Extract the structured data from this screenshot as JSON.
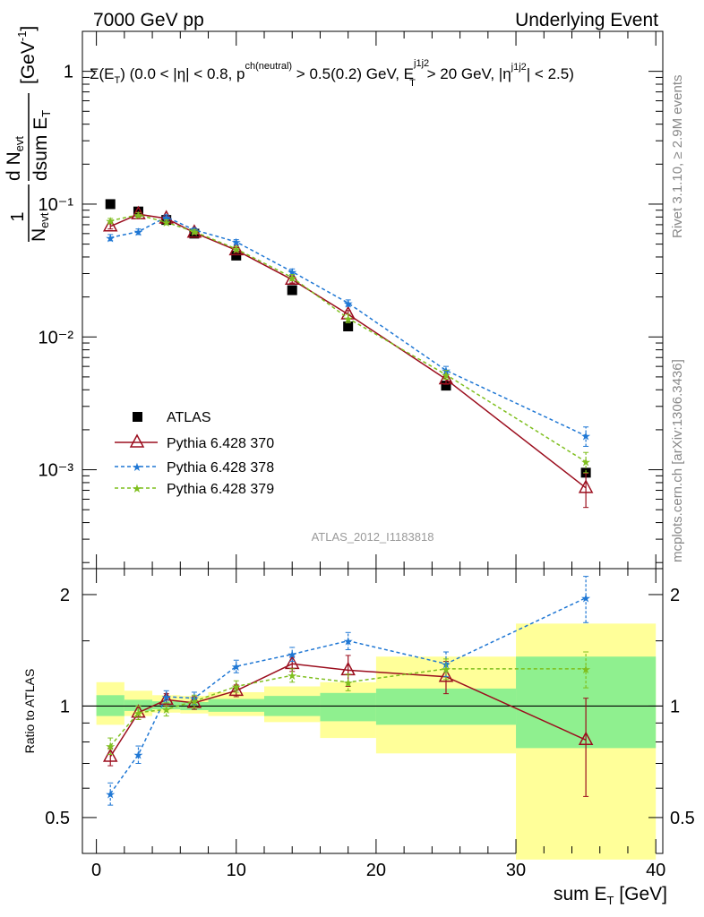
{
  "header": {
    "left": "7000 GeV pp",
    "right": "Underlying Event"
  },
  "side_labels": {
    "rivet": "Rivet 3.1.10, ≥ 2.9M events",
    "mcplots": "mcplots.cern.ch [arXiv:1306.3436]"
  },
  "analysis_id": "ATLAS_2012_I1183818",
  "cut_label": {
    "p1": "Σ(E",
    "p1sub": "T",
    "p2": ") (0.0 < |η| < 0.8, p",
    "p2sup": "ch(neutral)",
    "p3": " > 0.5(0.2) GeV, E",
    "p3sup": "j1j2",
    "p3sub": "T",
    "p4": " > 20 GeV, |η",
    "p4sup": "j1j2",
    "p5": "| < 2.5)"
  },
  "y_axis_label": {
    "one": "1",
    "n_evt": "N",
    "n_evt_sub": "evt",
    "dN": "d N",
    "dN_sub": "evt",
    "dsum": "dsum E",
    "dsum_sub": "T",
    "unit": "[GeV",
    "unit_sup": "-1",
    "unit_close": "]"
  },
  "x_axis_label": {
    "main": "sum E",
    "sub": "T",
    "unit": " [GeV]"
  },
  "ratio_y_label": "Ratio to ATLAS",
  "chart_data": [
    {
      "type": "scatter",
      "panel": "main",
      "yscale": "log",
      "xlim": [
        -1,
        40.5
      ],
      "ylim": [
        0.00018,
        2.0
      ],
      "y_tick_labels": [
        "1",
        "10⁻¹",
        "10⁻²",
        "10⁻³"
      ],
      "y_tick_values": [
        1,
        0.1,
        0.01,
        0.001
      ],
      "x": [
        1,
        3,
        5,
        7,
        10,
        14,
        18,
        25,
        35
      ],
      "series": [
        {
          "name": "ATLAS",
          "color": "#000000",
          "marker": "square",
          "values": [
            0.1,
            0.088,
            0.076,
            0.06,
            0.041,
            0.0225,
            0.012,
            0.0043,
            0.00095
          ]
        },
        {
          "name": "Pythia 6.428 370",
          "color": "#9b0e1e",
          "marker": "open-triangle",
          "line": "solid",
          "values": [
            0.068,
            0.084,
            0.078,
            0.061,
            0.045,
            0.027,
            0.0148,
            0.0048,
            0.00073
          ],
          "errors": [
            0.003,
            0.003,
            0.003,
            0.002,
            0.002,
            0.0015,
            0.001,
            0.0004,
            0.00021
          ]
        },
        {
          "name": "Pythia 6.428 378",
          "color": "#1f77d4",
          "marker": "star",
          "line": "dashed",
          "values": [
            0.056,
            0.062,
            0.08,
            0.064,
            0.052,
            0.031,
            0.018,
            0.0056,
            0.0018
          ],
          "errors": [
            0.003,
            0.003,
            0.003,
            0.002,
            0.002,
            0.0015,
            0.001,
            0.0004,
            0.0003
          ]
        },
        {
          "name": "Pythia 6.428 379",
          "color": "#7fbf1f",
          "marker": "star",
          "line": "dashed",
          "values": [
            0.075,
            0.083,
            0.073,
            0.062,
            0.046,
            0.028,
            0.0138,
            0.0052,
            0.00115
          ],
          "errors": [
            0.003,
            0.003,
            0.003,
            0.002,
            0.002,
            0.0015,
            0.001,
            0.0004,
            0.0002
          ]
        }
      ]
    },
    {
      "type": "scatter",
      "panel": "ratio",
      "yscale": "log",
      "ylabel": "Ratio to ATLAS",
      "xlabel": "sum E_T [GeV]",
      "xlim": [
        -1,
        40.5
      ],
      "ylim": [
        0.4,
        2.35
      ],
      "y_tick_labels": [
        "0.5",
        "1",
        "2"
      ],
      "y_tick_values": [
        0.5,
        1,
        2
      ],
      "x_tick_labels": [
        "0",
        "10",
        "20",
        "30",
        "40"
      ],
      "x_tick_values": [
        0,
        10,
        20,
        30,
        40
      ],
      "reference_line": 1,
      "uncertainty_bands": {
        "bins": [
          [
            0,
            2
          ],
          [
            2,
            4
          ],
          [
            4,
            6
          ],
          [
            6,
            8
          ],
          [
            8,
            12
          ],
          [
            12,
            16
          ],
          [
            16,
            20
          ],
          [
            20,
            30
          ],
          [
            30,
            40
          ]
        ],
        "stat_low": [
          0.94,
          0.97,
          0.98,
          0.975,
          0.965,
          0.94,
          0.91,
          0.89,
          0.77
        ],
        "stat_high": [
          1.07,
          1.04,
          1.03,
          1.025,
          1.045,
          1.065,
          1.085,
          1.115,
          1.36
        ],
        "total_low": [
          0.89,
          0.94,
          0.96,
          0.955,
          0.94,
          0.905,
          0.82,
          0.745,
          0.385
        ],
        "total_high": [
          1.16,
          1.1,
          1.07,
          1.065,
          1.09,
          1.13,
          1.16,
          1.36,
          1.67
        ],
        "stat_color": "#8ff08f",
        "total_color": "#ffff99"
      },
      "x": [
        1,
        3,
        5,
        7,
        10,
        14,
        18,
        25,
        35
      ],
      "series": [
        {
          "name": "Pythia 6.428 370",
          "color": "#9b0e1e",
          "marker": "open-triangle",
          "line": "solid",
          "values": [
            0.73,
            0.96,
            1.04,
            1.02,
            1.1,
            1.3,
            1.25,
            1.2,
            0.81
          ],
          "errors": [
            0.04,
            0.04,
            0.04,
            0.04,
            0.04,
            0.06,
            0.12,
            0.12,
            0.24
          ]
        },
        {
          "name": "Pythia 6.428 378",
          "color": "#1f77d4",
          "marker": "star",
          "line": "dashed",
          "values": [
            0.58,
            0.74,
            1.06,
            1.05,
            1.28,
            1.38,
            1.5,
            1.3,
            1.96
          ],
          "errors": [
            0.04,
            0.04,
            0.04,
            0.04,
            0.05,
            0.06,
            0.08,
            0.1,
            0.28
          ]
        },
        {
          "name": "Pythia 6.428 379",
          "color": "#7fbf1f",
          "marker": "star",
          "line": "dashed",
          "values": [
            0.78,
            0.96,
            0.98,
            1.03,
            1.13,
            1.21,
            1.16,
            1.26,
            1.26
          ],
          "errors": [
            0.04,
            0.04,
            0.04,
            0.04,
            0.04,
            0.05,
            0.06,
            0.08,
            0.14
          ]
        }
      ]
    }
  ]
}
